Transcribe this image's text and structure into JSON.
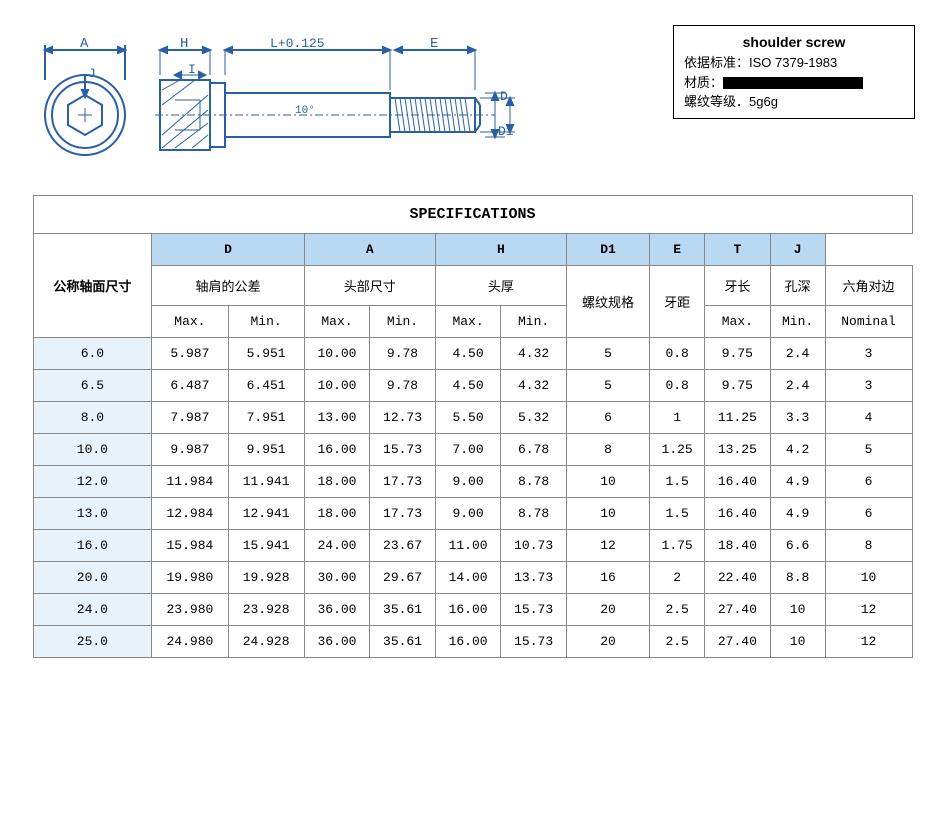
{
  "info_box": {
    "title": "shoulder screw",
    "line1_label": "依据标准：",
    "line1_value": "ISO 7379-1983",
    "line2_label": "材质：",
    "line3_label": "螺纹等级．",
    "line3_value": "5g6g"
  },
  "diagram": {
    "labels": {
      "A": "A",
      "J": "J",
      "H": "H",
      "I": "I",
      "L": "L+0.125",
      "E": "E",
      "D": "D",
      "D1": "D1",
      "angle": "10°"
    },
    "stroke": "#2b5fa5",
    "thread_fill": "#2b5fa5"
  },
  "table": {
    "title": "SPECIFICATIONS",
    "header_bg": "#b9d8f2",
    "firstcol_bg": "#e8f2fb",
    "border_color": "#888888",
    "col_first_label": "公称轴面尺寸",
    "letters": [
      "D",
      "A",
      "H",
      "D1",
      "E",
      "T",
      "J"
    ],
    "labels": [
      "轴肩的公差",
      "头部尺寸",
      "头厚",
      "螺纹规格",
      "牙距",
      "牙长",
      "孔深",
      "六角对边"
    ],
    "sublabels": {
      "max": "Max.",
      "min": "Min.",
      "nominal": "Nominal"
    },
    "rows": [
      {
        "size": "6.0",
        "D_max": "5.987",
        "D_min": "5.951",
        "A_max": "10.00",
        "A_min": "9.78",
        "H_max": "4.50",
        "H_min": "4.32",
        "D1": "5",
        "pitch": "0.8",
        "E": "9.75",
        "T": "2.4",
        "J": "3"
      },
      {
        "size": "6.5",
        "D_max": "6.487",
        "D_min": "6.451",
        "A_max": "10.00",
        "A_min": "9.78",
        "H_max": "4.50",
        "H_min": "4.32",
        "D1": "5",
        "pitch": "0.8",
        "E": "9.75",
        "T": "2.4",
        "J": "3"
      },
      {
        "size": "8.0",
        "D_max": "7.987",
        "D_min": "7.951",
        "A_max": "13.00",
        "A_min": "12.73",
        "H_max": "5.50",
        "H_min": "5.32",
        "D1": "6",
        "pitch": "1",
        "E": "11.25",
        "T": "3.3",
        "J": "4"
      },
      {
        "size": "10.0",
        "D_max": "9.987",
        "D_min": "9.951",
        "A_max": "16.00",
        "A_min": "15.73",
        "H_max": "7.00",
        "H_min": "6.78",
        "D1": "8",
        "pitch": "1.25",
        "E": "13.25",
        "T": "4.2",
        "J": "5"
      },
      {
        "size": "12.0",
        "D_max": "11.984",
        "D_min": "11.941",
        "A_max": "18.00",
        "A_min": "17.73",
        "H_max": "9.00",
        "H_min": "8.78",
        "D1": "10",
        "pitch": "1.5",
        "E": "16.40",
        "T": "4.9",
        "J": "6"
      },
      {
        "size": "13.0",
        "D_max": "12.984",
        "D_min": "12.941",
        "A_max": "18.00",
        "A_min": "17.73",
        "H_max": "9.00",
        "H_min": "8.78",
        "D1": "10",
        "pitch": "1.5",
        "E": "16.40",
        "T": "4.9",
        "J": "6"
      },
      {
        "size": "16.0",
        "D_max": "15.984",
        "D_min": "15.941",
        "A_max": "24.00",
        "A_min": "23.67",
        "H_max": "11.00",
        "H_min": "10.73",
        "D1": "12",
        "pitch": "1.75",
        "E": "18.40",
        "T": "6.6",
        "J": "8"
      },
      {
        "size": "20.0",
        "D_max": "19.980",
        "D_min": "19.928",
        "A_max": "30.00",
        "A_min": "29.67",
        "H_max": "14.00",
        "H_min": "13.73",
        "D1": "16",
        "pitch": "2",
        "E": "22.40",
        "T": "8.8",
        "J": "10"
      },
      {
        "size": "24.0",
        "D_max": "23.980",
        "D_min": "23.928",
        "A_max": "36.00",
        "A_min": "35.61",
        "H_max": "16.00",
        "H_min": "15.73",
        "D1": "20",
        "pitch": "2.5",
        "E": "27.40",
        "T": "10",
        "J": "12"
      },
      {
        "size": "25.0",
        "D_max": "24.980",
        "D_min": "24.928",
        "A_max": "36.00",
        "A_min": "35.61",
        "H_max": "16.00",
        "H_min": "15.73",
        "D1": "20",
        "pitch": "2.5",
        "E": "27.40",
        "T": "10",
        "J": "12"
      }
    ]
  }
}
